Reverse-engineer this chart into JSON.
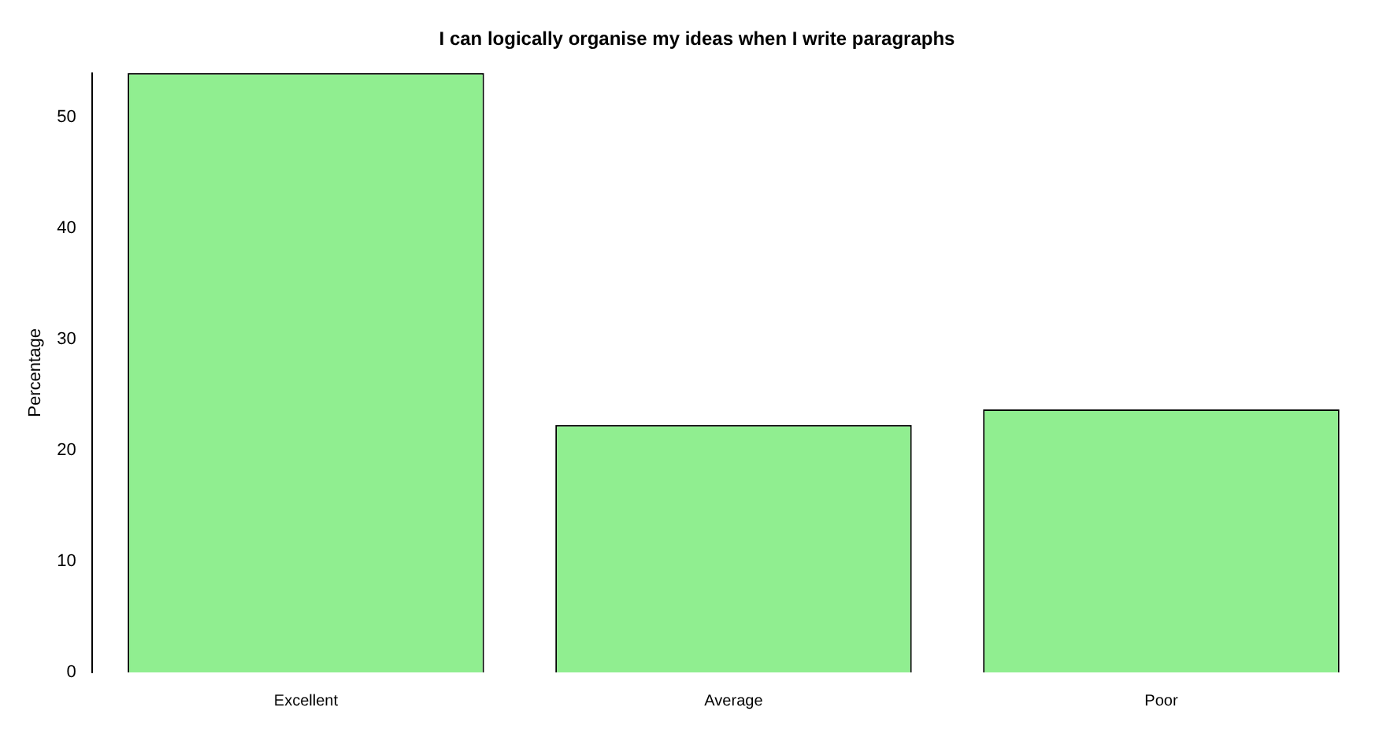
{
  "chart_data": {
    "type": "bar",
    "title": "I can logically organise my ideas when I write paragraphs",
    "ylabel": "Percentage",
    "categories": [
      "Excellent",
      "Average",
      "Poor"
    ],
    "values": [
      54,
      22.3,
      23.7
    ],
    "color": "#90ee90",
    "ylim": [
      0,
      54
    ],
    "yticks": [
      0,
      10,
      20,
      30,
      40,
      50
    ],
    "grid": false,
    "legend": false
  }
}
